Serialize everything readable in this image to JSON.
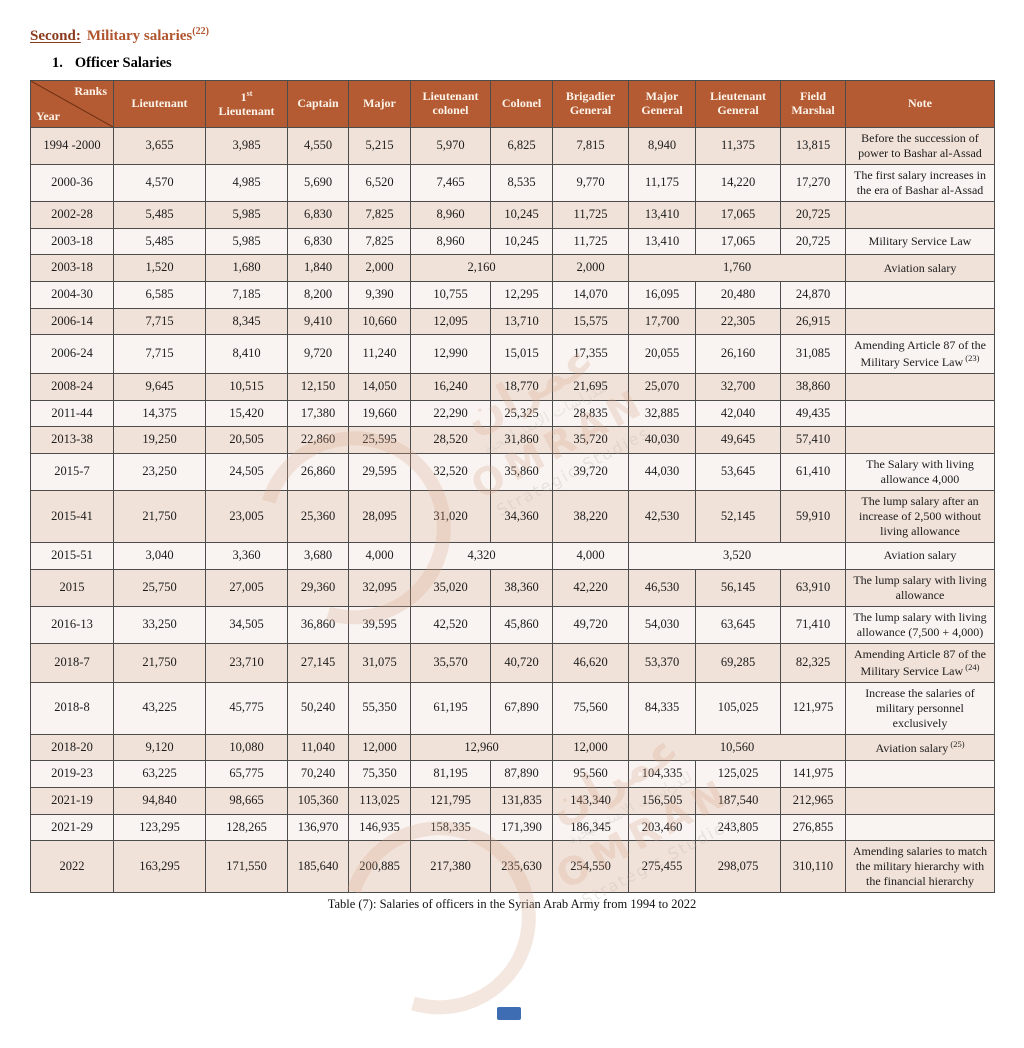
{
  "page": {
    "heading": {
      "prefix": "Second:",
      "title": "Military salaries",
      "sup": "(22)"
    },
    "subheading": {
      "number": "1.",
      "text": "Officer Salaries"
    },
    "caption": "Table (7): Salaries of officers in the Syrian Arab Army from 1994 to 2022"
  },
  "colors": {
    "header_bg": "#b45b33",
    "heading_prefix": "#8a3a1d",
    "heading_title": "#b0552d",
    "row_shaded": "#f1e2d9",
    "row_plain": "#f9f4f1",
    "border": "#4c4c4c",
    "watermark_salmon": "#d8a78c",
    "footer_blue": "#3f6db4"
  },
  "watermark": {
    "arabic": "عمران",
    "arabic_sub": "للدراسات الاستراتيجية",
    "latin": "OMRAN",
    "sub": "Strategic Studies"
  },
  "table": {
    "corner": {
      "top": "Ranks",
      "bottom": "Year"
    },
    "columns": [
      {
        "num": "1",
        "sup": "",
        "text": "Lieutenant",
        "plain": true
      },
      {
        "num": "1",
        "sup": "st",
        "text": "Lieutenant"
      },
      {
        "plain": true,
        "text": "Captain"
      },
      {
        "plain": true,
        "text": "Major"
      },
      {
        "plain": true,
        "text": "Lieutenant colonel"
      },
      {
        "plain": true,
        "text": "Colonel"
      },
      {
        "plain": true,
        "text": "Brigadier General"
      },
      {
        "plain": true,
        "text": "Major General"
      },
      {
        "plain": true,
        "text": "Lieutenant General"
      },
      {
        "plain": true,
        "text": "Field Marshal"
      },
      {
        "plain": true,
        "text": "Note"
      }
    ],
    "rows": [
      {
        "year": "1994 -2000",
        "cells": [
          "3,655",
          "3,985",
          "4,550",
          "5,215",
          "5,970",
          "6,825",
          "7,815",
          "8,940",
          "11,375",
          "13,815"
        ],
        "note": "Before the succession of power to Bashar al-Assad"
      },
      {
        "year": "2000-36",
        "cells": [
          "4,570",
          "4,985",
          "5,690",
          "6,520",
          "7,465",
          "8,535",
          "9,770",
          "11,175",
          "14,220",
          "17,270"
        ],
        "note": "The first salary increases in the era of Bashar al-Assad"
      },
      {
        "year": "2002-28",
        "cells": [
          "5,485",
          "5,985",
          "6,830",
          "7,825",
          "8,960",
          "10,245",
          "11,725",
          "13,410",
          "17,065",
          "20,725"
        ],
        "note": ""
      },
      {
        "year": "2003-18",
        "cells": [
          "5,485",
          "5,985",
          "6,830",
          "7,825",
          "8,960",
          "10,245",
          "11,725",
          "13,410",
          "17,065",
          "20,725"
        ],
        "note": "Military Service Law"
      },
      {
        "year": "2003-18",
        "cells": [
          "1,520",
          "1,680",
          "1,840",
          "2,000",
          {
            "v": "2,160",
            "span": 2
          },
          "2,000",
          {
            "v": "1,760",
            "span": 3
          }
        ],
        "note": "Aviation salary"
      },
      {
        "year": "2004-30",
        "cells": [
          "6,585",
          "7,185",
          "8,200",
          "9,390",
          "10,755",
          "12,295",
          "14,070",
          "16,095",
          "20,480",
          "24,870"
        ],
        "note": ""
      },
      {
        "year": "2006-14",
        "cells": [
          "7,715",
          "8,345",
          "9,410",
          "10,660",
          "12,095",
          "13,710",
          "15,575",
          "17,700",
          "22,305",
          "26,915"
        ],
        "note": ""
      },
      {
        "year": "2006-24",
        "cells": [
          "7,715",
          "8,410",
          "9,720",
          "11,240",
          "12,990",
          "15,015",
          "17,355",
          "20,055",
          "26,160",
          "31,085"
        ],
        "note": "Amending Article 87 of the Military Service Law",
        "note_sup": "(23)"
      },
      {
        "year": "2008-24",
        "cells": [
          "9,645",
          "10,515",
          "12,150",
          "14,050",
          "16,240",
          "18,770",
          "21,695",
          "25,070",
          "32,700",
          "38,860"
        ],
        "note": ""
      },
      {
        "year": "2011-44",
        "cells": [
          "14,375",
          "15,420",
          "17,380",
          "19,660",
          "22,290",
          "25,325",
          "28,835",
          "32,885",
          "42,040",
          "49,435"
        ],
        "note": ""
      },
      {
        "year": "2013-38",
        "cells": [
          "19,250",
          "20,505",
          "22,860",
          "25,595",
          "28,520",
          "31,860",
          "35,720",
          "40,030",
          "49,645",
          "57,410"
        ],
        "note": ""
      },
      {
        "year": "2015-7",
        "cells": [
          "23,250",
          "24,505",
          "26,860",
          "29,595",
          "32,520",
          "35,860",
          "39,720",
          "44,030",
          "53,645",
          "61,410"
        ],
        "note": "The Salary with living allowance 4,000"
      },
      {
        "year": "2015-41",
        "cells": [
          "21,750",
          "23,005",
          "25,360",
          "28,095",
          "31,020",
          "34,360",
          "38,220",
          "42,530",
          "52,145",
          "59,910"
        ],
        "note": "The lump salary after an increase of 2,500 without living allowance"
      },
      {
        "year": "2015-51",
        "cells": [
          "3,040",
          "3,360",
          "3,680",
          "4,000",
          {
            "v": "4,320",
            "span": 2
          },
          "4,000",
          {
            "v": "3,520",
            "span": 3
          }
        ],
        "note": "Aviation salary"
      },
      {
        "year": "2015",
        "cells": [
          "25,750",
          "27,005",
          "29,360",
          "32,095",
          "35,020",
          "38,360",
          "42,220",
          "46,530",
          "56,145",
          "63,910"
        ],
        "note": "The lump salary with living allowance"
      },
      {
        "year": "2016-13",
        "cells": [
          "33,250",
          "34,505",
          "36,860",
          "39,595",
          "42,520",
          "45,860",
          "49,720",
          "54,030",
          "63,645",
          "71,410"
        ],
        "note": "The lump salary with living allowance (7,500 + 4,000)"
      },
      {
        "year": "2018-7",
        "cells": [
          "21,750",
          "23,710",
          "27,145",
          "31,075",
          "35,570",
          "40,720",
          "46,620",
          "53,370",
          "69,285",
          "82,325"
        ],
        "note": "Amending Article 87 of the Military Service Law",
        "note_sup": "(24)"
      },
      {
        "year": "2018-8",
        "cells": [
          "43,225",
          "45,775",
          "50,240",
          "55,350",
          "61,195",
          "67,890",
          "75,560",
          "84,335",
          "105,025",
          "121,975"
        ],
        "note": "Increase the salaries of military personnel exclusively"
      },
      {
        "year": "2018-20",
        "cells": [
          "9,120",
          "10,080",
          "11,040",
          "12,000",
          {
            "v": "12,960",
            "span": 2
          },
          "12,000",
          {
            "v": "10,560",
            "span": 3
          }
        ],
        "note": "Aviation salary",
        "note_sup": "(25)"
      },
      {
        "year": "2019-23",
        "cells": [
          "63,225",
          "65,775",
          "70,240",
          "75,350",
          "81,195",
          "87,890",
          "95,560",
          "104,335",
          "125,025",
          "141,975"
        ],
        "note": ""
      },
      {
        "year": "2021-19",
        "cells": [
          "94,840",
          "98,665",
          "105,360",
          "113,025",
          "121,795",
          "131,835",
          "143,340",
          "156,505",
          "187,540",
          "212,965"
        ],
        "note": ""
      },
      {
        "year": "2021-29",
        "cells": [
          "123,295",
          "128,265",
          "136,970",
          "146,935",
          "158,335",
          "171,390",
          "186,345",
          "203,460",
          "243,805",
          "276,855"
        ],
        "note": ""
      },
      {
        "year": "2022",
        "cells": [
          "163,295",
          "171,550",
          "185,640",
          "200,885",
          "217,380",
          "235,630",
          "254,550",
          "275,455",
          "298,075",
          "310,110"
        ],
        "note": "Amending salaries to match the military hierarchy with the financial hierarchy"
      }
    ]
  }
}
